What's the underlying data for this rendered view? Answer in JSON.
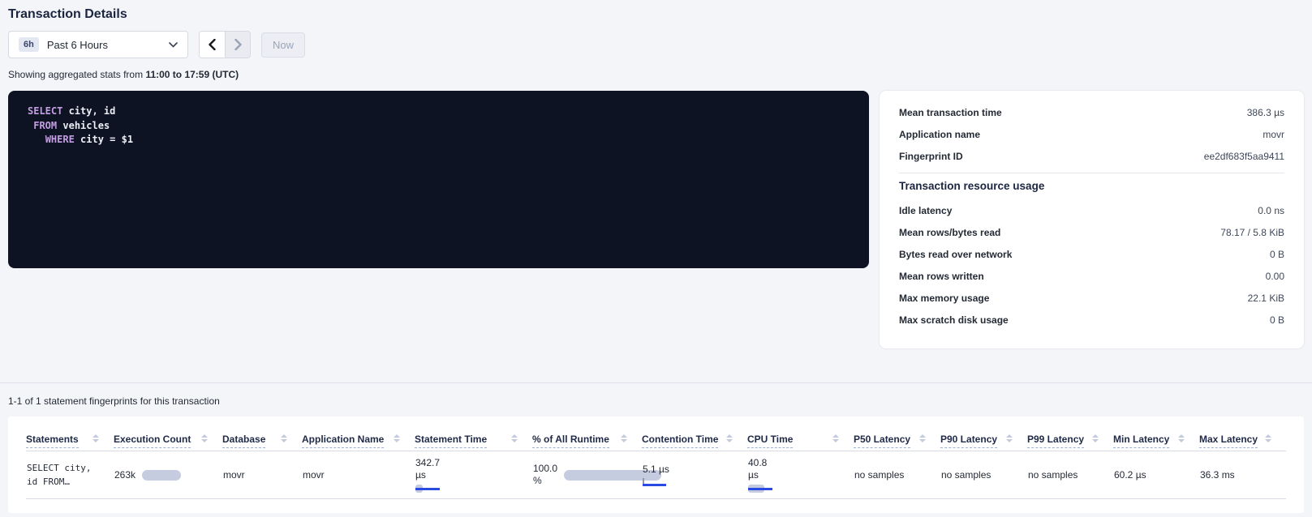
{
  "colors": {
    "accent_blue": "#2b4ae2",
    "bar_gray": "#c6ccdf",
    "sql_background": "#0d1322",
    "sql_keyword": "#c49ee2",
    "page_background": "#f4f5f9"
  },
  "header": {
    "title": "Transaction Details",
    "time_picker": {
      "badge": "6h",
      "label": "Past 6 Hours"
    },
    "now_button": "Now",
    "stats_range_prefix": "Showing aggregated stats from ",
    "stats_range_bold": "11:00 to 17:59 (UTC)"
  },
  "sql": {
    "lines": [
      [
        {
          "v": "SELECT"
        },
        {
          "v": " city, id"
        }
      ],
      [
        {
          "v": " "
        },
        {
          "v": "FROM"
        },
        {
          "v": " vehicles"
        }
      ],
      [
        {
          "v": "   "
        },
        {
          "v": "WHERE"
        },
        {
          "v": " city = $1"
        }
      ]
    ]
  },
  "summary": {
    "rows": [
      {
        "label": "Mean transaction time",
        "value": "386.3 µs"
      },
      {
        "label": "Application name",
        "value": "movr"
      },
      {
        "label": "Fingerprint ID",
        "value": "ee2df683f5aa9411"
      }
    ],
    "resource_heading": "Transaction resource usage",
    "resource_rows": [
      {
        "label": "Idle latency",
        "value": "0.0 ns"
      },
      {
        "label": "Mean rows/bytes read",
        "value": "78.17 / 5.8 KiB"
      },
      {
        "label": "Bytes read over network",
        "value": "0 B"
      },
      {
        "label": "Mean rows written",
        "value": "0.00"
      },
      {
        "label": "Max memory usage",
        "value": "22.1 KiB"
      },
      {
        "label": "Max scratch disk usage",
        "value": "0 B"
      }
    ]
  },
  "statements": {
    "count_text": "1-1 of 1 statement fingerprints for this transaction",
    "columns": [
      "Statements",
      "Execution Count",
      "Database",
      "Application Name",
      "Statement Time",
      "% of All Runtime",
      "Contention Time",
      "CPU Time",
      "P50 Latency",
      "P90 Latency",
      "P99 Latency",
      "Min Latency",
      "Max Latency"
    ],
    "row": {
      "statement_line1": "SELECT city,",
      "statement_line2": "id FROM…",
      "execution_count": "263k",
      "execution_bar": 48,
      "database": "movr",
      "application_name": "movr",
      "statement_time_lines": [
        "342.7",
        "µs"
      ],
      "statement_time_bar": {
        "gray": 9,
        "blue": 30
      },
      "runtime_lines": [
        "100.0",
        "%"
      ],
      "runtime_bar": 120,
      "contention_time": "5.1 µs",
      "contention_bar": {
        "blue": 29
      },
      "cpu_time_lines": [
        "40.8",
        "µs"
      ],
      "cpu_bar": {
        "gray": 20,
        "blue": 30
      },
      "p50_latency": "no samples",
      "p90_latency": "no samples",
      "p99_latency": "no samples",
      "min_latency": "60.2 µs",
      "max_latency": "36.3 ms"
    }
  }
}
